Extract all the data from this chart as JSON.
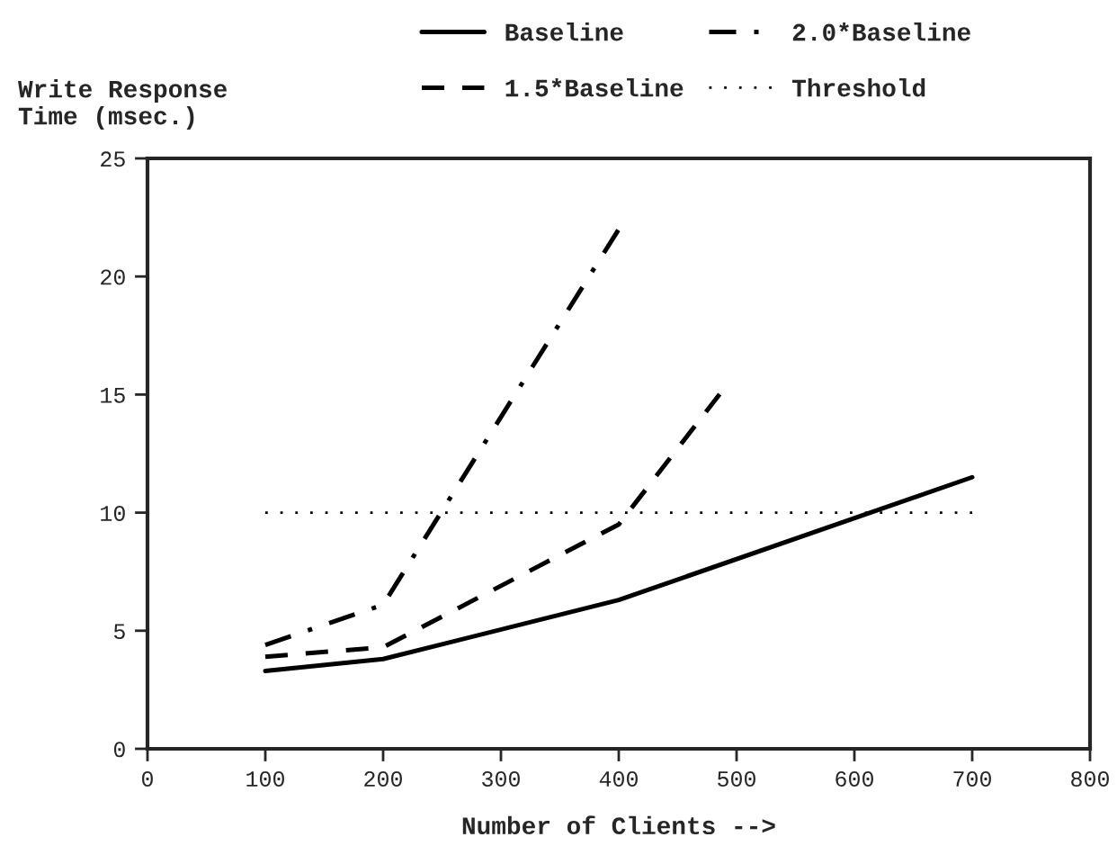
{
  "chart_data": {
    "type": "line",
    "ylabel": "Write Response\nTime (msec.)",
    "xlabel": "Number of Clients -->",
    "series": [
      {
        "name": "Baseline",
        "color": "#000000",
        "line_style": "solid",
        "x": [
          100,
          200,
          400,
          700
        ],
        "values": [
          3.3,
          3.8,
          6.3,
          11.5
        ]
      },
      {
        "name": "1.5*Baseline",
        "color": "#000000",
        "line_style": "dashed",
        "x": [
          100,
          200,
          400,
          490
        ],
        "values": [
          3.9,
          4.3,
          9.5,
          15.3
        ]
      },
      {
        "name": "2.0*Baseline",
        "color": "#000000",
        "line_style": "dashdot",
        "x": [
          100,
          200,
          400
        ],
        "values": [
          4.4,
          6.1,
          22
        ]
      },
      {
        "name": "Threshold",
        "color": "#000000",
        "line_style": "dotted",
        "x": [
          100,
          700
        ],
        "values": [
          10,
          10
        ]
      }
    ],
    "xlim": [
      0,
      800
    ],
    "xticks": [
      0,
      100,
      200,
      300,
      400,
      500,
      600,
      700,
      800
    ],
    "ylim": [
      0,
      25
    ],
    "yticks": [
      0,
      5,
      10,
      15,
      20,
      25
    ],
    "grid": false,
    "legend": "top",
    "marker": "none"
  }
}
